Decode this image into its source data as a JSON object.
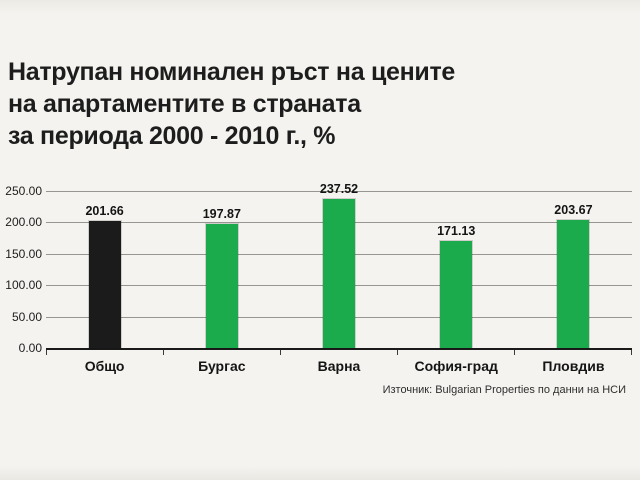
{
  "chart_data": {
    "type": "bar",
    "title": "Натрупан номинален ръст на цените на апартаментите в страната за периода 2000 - 2010 г., %",
    "title_lines": [
      "Натрупан номинален ръст на цените",
      "на апартаментите в страната",
      "за периода 2000 - 2010 г., %"
    ],
    "categories": [
      "Общо",
      "Бургас",
      "Варна",
      "София-град",
      "Пловдив"
    ],
    "values": [
      201.66,
      197.87,
      237.52,
      171.13,
      203.67
    ],
    "value_labels": [
      "201.66",
      "197.87",
      "237.52",
      "171.13",
      "203.67"
    ],
    "bar_colors": [
      "#1b1b1b",
      "#1bab4c",
      "#1bab4c",
      "#1bab4c",
      "#1bab4c"
    ],
    "ylim": [
      0,
      250
    ],
    "y_ticks": [
      "250.00",
      "200.00",
      "150.00",
      "100.00",
      "50.00",
      "0.00"
    ],
    "grid": true,
    "legend": "none",
    "source": "Източник: Bulgarian Properties по данни на НСИ"
  }
}
